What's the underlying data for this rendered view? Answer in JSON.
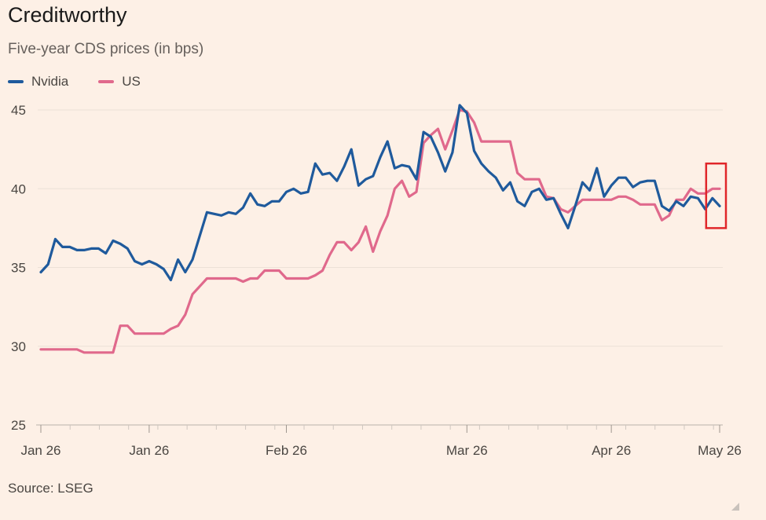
{
  "header": {
    "title": "Creditworthy",
    "subtitle": "Five-year CDS prices (in bps)"
  },
  "legend": [
    {
      "name": "Nvidia",
      "color": "#1f5a9c"
    },
    {
      "name": "US",
      "color": "#e0698c"
    }
  ],
  "source": "Source: LSEG",
  "colors": {
    "background": "#fdf0e6",
    "grid": "#ece1d7",
    "highlight": "#e0262a"
  },
  "chart_data": {
    "type": "line",
    "ylim": [
      25,
      45
    ],
    "yticks": [
      25,
      30,
      35,
      40,
      45
    ],
    "xticks": [
      {
        "index": 0,
        "label": "Jan 26"
      },
      {
        "index": 15,
        "label": "Jan 26"
      },
      {
        "index": 34,
        "label": "Feb 26"
      },
      {
        "index": 59,
        "label": "Mar 26"
      },
      {
        "index": 79,
        "label": "Apr 26"
      },
      {
        "index": 94,
        "label": "May 26"
      }
    ],
    "n_points": 95,
    "grid": true,
    "legend_position": "top-left",
    "highlight": {
      "type": "box",
      "from_index": 93,
      "to_index": 95,
      "y_range": [
        37.5,
        41.6
      ],
      "color": "#e0262a"
    },
    "series": [
      {
        "name": "Nvidia",
        "color": "#1f5a9c",
        "values": [
          34.7,
          35.2,
          36.8,
          36.3,
          36.3,
          36.1,
          36.1,
          36.2,
          36.2,
          35.9,
          36.7,
          36.5,
          36.2,
          35.4,
          35.2,
          35.4,
          35.2,
          34.9,
          34.2,
          35.5,
          34.7,
          35.5,
          37.0,
          38.5,
          38.4,
          38.3,
          38.5,
          38.4,
          38.8,
          39.7,
          39.0,
          38.9,
          39.2,
          39.2,
          39.8,
          40.0,
          39.7,
          39.8,
          41.6,
          40.9,
          41.0,
          40.5,
          41.4,
          42.5,
          40.2,
          40.6,
          40.8,
          42.0,
          43.0,
          41.3,
          41.5,
          41.4,
          40.6,
          43.6,
          43.3,
          42.3,
          41.1,
          42.3,
          45.3,
          44.8,
          42.4,
          41.6,
          41.1,
          40.7,
          39.9,
          40.4,
          39.2,
          38.9,
          39.8,
          40.0,
          39.3,
          39.4,
          38.4,
          37.5,
          38.9,
          40.4,
          39.9,
          41.3,
          39.5,
          40.2,
          40.7,
          40.7,
          40.1,
          40.4,
          40.5,
          40.5,
          38.9,
          38.6,
          39.2,
          38.9,
          39.5,
          39.4,
          38.7,
          39.4,
          38.9
        ]
      },
      {
        "name": "US",
        "color": "#e0698c",
        "values": [
          29.8,
          29.8,
          29.8,
          29.8,
          29.8,
          29.8,
          29.6,
          29.6,
          29.6,
          29.6,
          29.6,
          31.3,
          31.3,
          30.8,
          30.8,
          30.8,
          30.8,
          30.8,
          31.1,
          31.3,
          32.0,
          33.3,
          33.8,
          34.3,
          34.3,
          34.3,
          34.3,
          34.3,
          34.1,
          34.3,
          34.3,
          34.8,
          34.8,
          34.8,
          34.3,
          34.3,
          34.3,
          34.3,
          34.5,
          34.8,
          35.8,
          36.6,
          36.6,
          36.1,
          36.6,
          37.6,
          36.0,
          37.3,
          38.3,
          40.0,
          40.5,
          39.5,
          39.8,
          42.9,
          43.4,
          43.8,
          42.5,
          43.7,
          45.0,
          44.9,
          44.2,
          43.0,
          43.0,
          43.0,
          43.0,
          43.0,
          41.0,
          40.6,
          40.6,
          40.6,
          39.5,
          39.4,
          38.7,
          38.5,
          38.9,
          39.3,
          39.3,
          39.3,
          39.3,
          39.3,
          39.5,
          39.5,
          39.3,
          39.0,
          39.0,
          39.0,
          38.0,
          38.3,
          39.3,
          39.3,
          40.0,
          39.7,
          39.7,
          40.0,
          40.0
        ]
      }
    ]
  }
}
